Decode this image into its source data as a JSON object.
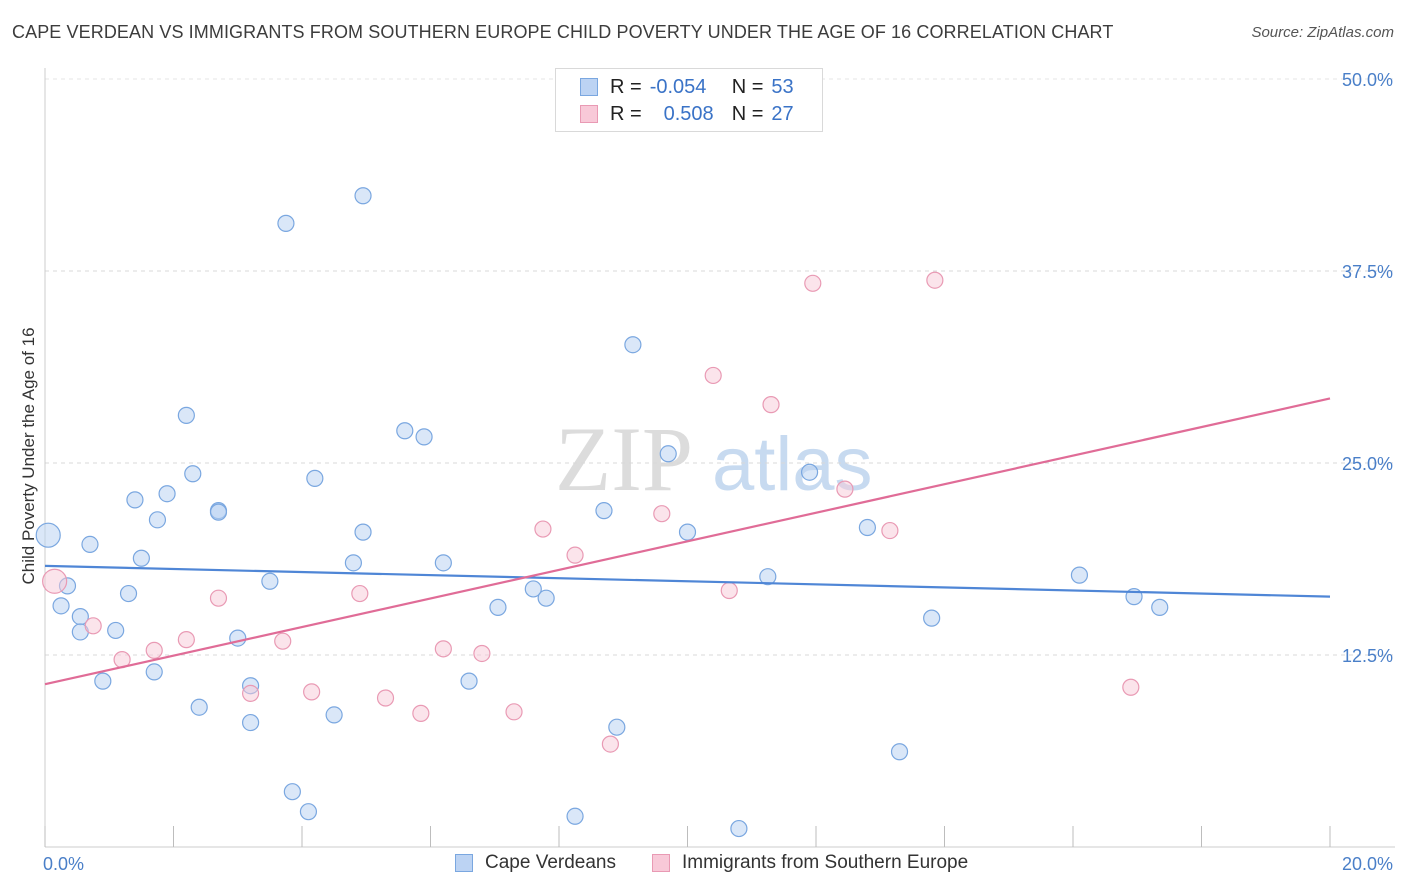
{
  "title": "CAPE VERDEAN VS IMMIGRANTS FROM SOUTHERN EUROPE CHILD POVERTY UNDER THE AGE OF 16 CORRELATION CHART",
  "source": "Source: ZipAtlas.com",
  "watermark": {
    "zip": "ZIP",
    "atlas": "atlas"
  },
  "legend": {
    "r_label": "R =",
    "n_label": "N =",
    "series": [
      {
        "name": "Cape Verdeans",
        "r": "-0.054",
        "n": "53",
        "color": "#7aa7e0",
        "fill": "#bcd3f3"
      },
      {
        "name": "Immigrants from Southern Europe",
        "r": "0.508",
        "n": "27",
        "color": "#e99ab4",
        "fill": "#f8c9d8"
      }
    ]
  },
  "chart_data": {
    "type": "scatter",
    "title": "CAPE VERDEAN VS IMMIGRANTS FROM SOUTHERN EUROPE CHILD POVERTY UNDER THE AGE OF 16 CORRELATION CHART",
    "xlabel": "",
    "ylabel": "Child Poverty Under the Age of 16",
    "xlim": [
      0,
      20
    ],
    "ylim": [
      0,
      50
    ],
    "x_tick_labels": [
      "0.0%",
      "20.0%"
    ],
    "y_ticks": [
      12.5,
      25.0,
      37.5,
      50.0
    ],
    "y_tick_labels": [
      "12.5%",
      "25.0%",
      "37.5%",
      "50.0%"
    ],
    "grid": true,
    "series": [
      {
        "name": "Cape Verdeans",
        "color": "#4f86d6",
        "trend": {
          "x": [
            0,
            20
          ],
          "y": [
            18.3,
            16.3
          ]
        },
        "points": [
          [
            0.05,
            20.3
          ],
          [
            0.35,
            17.0
          ],
          [
            0.25,
            15.7
          ],
          [
            0.7,
            19.7
          ],
          [
            0.55,
            15.0
          ],
          [
            0.55,
            14.0
          ],
          [
            0.9,
            10.8
          ],
          [
            1.1,
            14.1
          ],
          [
            1.3,
            16.5
          ],
          [
            1.5,
            18.8
          ],
          [
            1.4,
            22.6
          ],
          [
            1.75,
            21.3
          ],
          [
            1.9,
            23.0
          ],
          [
            2.2,
            28.1
          ],
          [
            2.3,
            24.3
          ],
          [
            2.7,
            21.9
          ],
          [
            2.7,
            21.8
          ],
          [
            1.7,
            11.4
          ],
          [
            2.4,
            9.1
          ],
          [
            3.0,
            13.6
          ],
          [
            3.2,
            10.5
          ],
          [
            3.2,
            8.1
          ],
          [
            3.5,
            17.3
          ],
          [
            3.75,
            40.6
          ],
          [
            3.85,
            3.6
          ],
          [
            4.1,
            2.3
          ],
          [
            4.2,
            24.0
          ],
          [
            4.5,
            8.6
          ],
          [
            4.8,
            18.5
          ],
          [
            4.95,
            20.5
          ],
          [
            4.95,
            42.4
          ],
          [
            5.6,
            27.1
          ],
          [
            5.9,
            26.7
          ],
          [
            6.2,
            18.5
          ],
          [
            6.6,
            10.8
          ],
          [
            7.05,
            15.6
          ],
          [
            7.6,
            16.8
          ],
          [
            7.8,
            16.2
          ],
          [
            8.25,
            2.0
          ],
          [
            8.7,
            21.9
          ],
          [
            8.9,
            7.8
          ],
          [
            9.15,
            32.7
          ],
          [
            9.7,
            25.6
          ],
          [
            10.0,
            20.5
          ],
          [
            10.8,
            1.2
          ],
          [
            11.25,
            17.6
          ],
          [
            11.9,
            24.4
          ],
          [
            12.8,
            20.8
          ],
          [
            13.3,
            6.2
          ],
          [
            13.8,
            14.9
          ],
          [
            16.1,
            17.7
          ],
          [
            16.95,
            16.3
          ],
          [
            17.35,
            15.6
          ]
        ]
      },
      {
        "name": "Immigrants from Southern Europe",
        "color": "#e06c97",
        "trend": {
          "x": [
            0,
            20
          ],
          "y": [
            10.6,
            29.2
          ]
        },
        "points": [
          [
            0.15,
            17.3
          ],
          [
            0.75,
            14.4
          ],
          [
            1.2,
            12.2
          ],
          [
            1.7,
            12.8
          ],
          [
            2.2,
            13.5
          ],
          [
            2.7,
            16.2
          ],
          [
            3.2,
            10.0
          ],
          [
            3.7,
            13.4
          ],
          [
            4.15,
            10.1
          ],
          [
            4.9,
            16.5
          ],
          [
            5.3,
            9.7
          ],
          [
            5.85,
            8.7
          ],
          [
            6.2,
            12.9
          ],
          [
            6.8,
            12.6
          ],
          [
            7.3,
            8.8
          ],
          [
            7.75,
            20.7
          ],
          [
            8.25,
            19.0
          ],
          [
            8.8,
            6.7
          ],
          [
            9.6,
            21.7
          ],
          [
            10.4,
            30.7
          ],
          [
            10.65,
            16.7
          ],
          [
            11.3,
            28.8
          ],
          [
            11.95,
            36.7
          ],
          [
            12.45,
            23.3
          ],
          [
            13.15,
            20.6
          ],
          [
            13.85,
            36.9
          ],
          [
            16.9,
            10.4
          ]
        ]
      }
    ]
  }
}
